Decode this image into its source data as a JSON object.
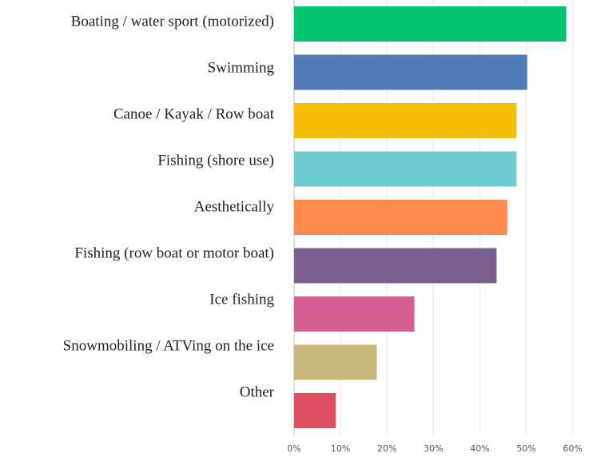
{
  "chart_data": {
    "type": "hbar",
    "categories": [
      "Boating / water sport (motorized)",
      "Swimming",
      "Canoe / Kayak / Row boat",
      "Fishing (shore use)",
      "Aesthetically",
      "Fishing (row boat or motor boat)",
      "Ice fishing",
      "Snowmobiling / ATVing on the ice",
      "Other"
    ],
    "values": [
      58.6,
      50.2,
      47.9,
      47.9,
      45.9,
      43.6,
      25.9,
      17.8,
      9.0
    ],
    "colors": [
      "#00c26f",
      "#4f7bb7",
      "#f7bd00",
      "#6ccbcf",
      "#ff8c4f",
      "#7b5e91",
      "#d55e92",
      "#c9b97c",
      "#dc4f5e"
    ],
    "xlim": [
      0,
      63.5
    ],
    "xticks": [
      {
        "value": 0,
        "label": "0%"
      },
      {
        "value": 10,
        "label": "10%"
      },
      {
        "value": 20,
        "label": "20%"
      },
      {
        "value": 30,
        "label": "30%"
      },
      {
        "value": 40,
        "label": "40%"
      },
      {
        "value": 50,
        "label": "50%"
      },
      {
        "value": 60,
        "label": "60%"
      }
    ],
    "grid": true
  }
}
